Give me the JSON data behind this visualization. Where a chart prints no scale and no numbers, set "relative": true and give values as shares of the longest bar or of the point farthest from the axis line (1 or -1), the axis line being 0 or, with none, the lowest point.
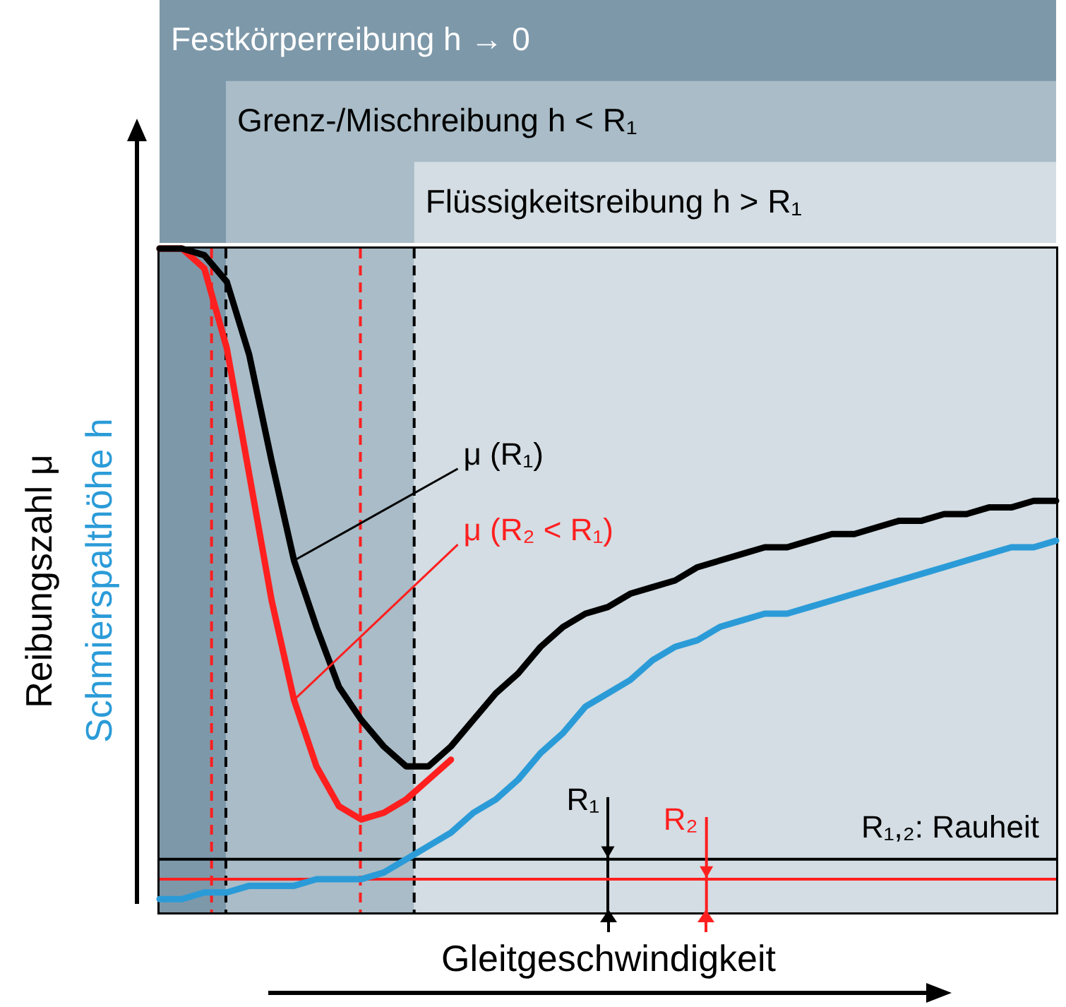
{
  "chart_data": {
    "type": "line",
    "relative": true,
    "xlabel": "Gleitgeschwindigkeit",
    "ylabel": "Reibungszahl  μ",
    "categories": [
      null,
      null,
      null,
      null,
      null,
      null,
      null,
      null,
      null,
      null,
      null,
      null,
      null,
      null,
      null,
      null,
      null,
      null,
      null,
      null,
      null,
      null,
      null,
      null,
      null,
      null,
      null,
      null,
      null,
      null,
      null,
      null,
      null,
      null,
      null,
      null,
      null,
      null,
      null,
      null,
      null
    ],
    "series": [
      {
        "name": "Schmierspalthöhe h",
        "color": "#2b9bd8",
        "values": [
          0.02,
          0.02,
          0.03,
          0.03,
          0.04,
          0.04,
          0.04,
          0.05,
          0.05,
          0.05,
          0.06,
          0.08,
          0.1,
          0.12,
          0.15,
          0.17,
          0.2,
          0.24,
          0.27,
          0.31,
          0.33,
          0.35,
          0.38,
          0.4,
          0.41,
          0.43,
          0.44,
          0.45,
          0.45,
          0.46,
          0.47,
          0.48,
          0.49,
          0.5,
          0.51,
          0.52,
          0.53,
          0.54,
          0.55,
          0.55,
          0.56
        ]
      },
      {
        "color": "#ff1f1f",
        "values": [
          1,
          1,
          0.97,
          0.85,
          0.66,
          0.47,
          0.32,
          0.22,
          0.16,
          0.14,
          0.15,
          0.17,
          0.2,
          0.23,
          null,
          null,
          null,
          null,
          null,
          null,
          null,
          null,
          null,
          null,
          null,
          null,
          null,
          null,
          null,
          null,
          null,
          null,
          null,
          null,
          null,
          null,
          null,
          null,
          null,
          null,
          null
        ]
      },
      {
        "color": "#000000",
        "values": [
          1,
          1,
          0.99,
          0.95,
          0.84,
          0.68,
          0.53,
          0.43,
          0.34,
          0.29,
          0.25,
          0.22,
          0.22,
          0.25,
          0.29,
          0.33,
          0.36,
          0.4,
          0.43,
          0.45,
          0.46,
          0.48,
          0.49,
          0.5,
          0.52,
          0.53,
          0.54,
          0.55,
          0.55,
          0.56,
          0.57,
          0.57,
          0.58,
          0.59,
          0.59,
          0.6,
          0.6,
          0.61,
          0.61,
          0.62,
          0.62
        ]
      }
    ],
    "ref_lines": [
      {
        "axis": "y",
        "value": 0.08,
        "color": "#000000",
        "label": "R₁"
      },
      {
        "axis": "y",
        "value": 0.05,
        "color": "#ff1f1f",
        "label": "R₂"
      }
    ],
    "annotations": [
      "Festkörperreibung h → 0",
      "Grenz-/Mischreibung h < R₁",
      "Flüssigkeitsreibung h > R₁",
      "μ (R₁)",
      "μ (R₂ < R₁)",
      "R₁,₂: Rauheit"
    ]
  }
}
